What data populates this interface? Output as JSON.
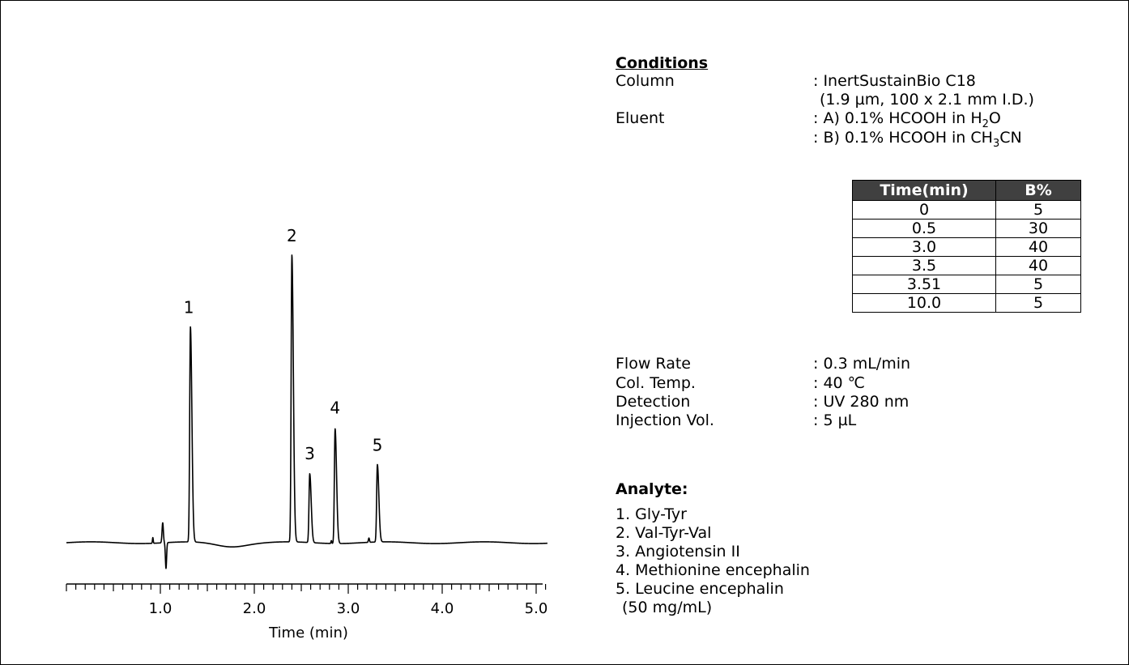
{
  "chart_data": {
    "type": "line",
    "xlabel": "Time (min)",
    "xlim": [
      0,
      5.2
    ],
    "xticks_major": [
      "1.0",
      "2.0",
      "3.0",
      "4.0",
      "5.0"
    ],
    "baseline": 0,
    "ylim": [
      -0.1,
      1.0
    ],
    "peaks": [
      {
        "label": "1",
        "time": 1.32,
        "height": 0.75
      },
      {
        "label": "2",
        "time": 2.4,
        "height": 1.0
      },
      {
        "label": "3",
        "time": 2.59,
        "height": 0.24
      },
      {
        "label": "4",
        "time": 2.86,
        "height": 0.4
      },
      {
        "label": "5",
        "time": 3.31,
        "height": 0.27
      }
    ]
  },
  "conditions": {
    "heading": "Conditions",
    "column_label": "Column",
    "column_value": ": InertSustainBio C18",
    "column_value_2": "(1.9 µm,  100 x 2.1 mm I.D.)",
    "eluent_label": "Eluent",
    "eluent_a_pre": ": A) 0.1% HCOOH in H",
    "eluent_a_sub": "2",
    "eluent_a_post": "O",
    "eluent_b_pre": ": B) 0.1% HCOOH in CH",
    "eluent_b_sub": "3",
    "eluent_b_post": "CN",
    "gradient": {
      "headers": [
        "Time(min)",
        "B%"
      ],
      "rows": [
        [
          "0",
          "5"
        ],
        [
          "0.5",
          "30"
        ],
        [
          "3.0",
          "40"
        ],
        [
          "3.5",
          "40"
        ],
        [
          "3.51",
          "5"
        ],
        [
          "10.0",
          "5"
        ]
      ]
    },
    "flow_label": "Flow Rate",
    "flow_value": ": 0.3 mL/min",
    "temp_label": "Col. Temp.",
    "temp_value": ": 40 ℃",
    "detection_label": "Detection",
    "detection_value": ": UV 280 nm",
    "injection_label": "Injection Vol.",
    "injection_value": ": 5 µL"
  },
  "analyte": {
    "heading": "Analyte:",
    "items": [
      "1. Gly-Tyr",
      "2. Val-Tyr-Val",
      "3. Angiotensin II",
      "4. Methionine encephalin",
      "5. Leucine encephalin"
    ],
    "concentration": "(50 mg/mL)"
  }
}
